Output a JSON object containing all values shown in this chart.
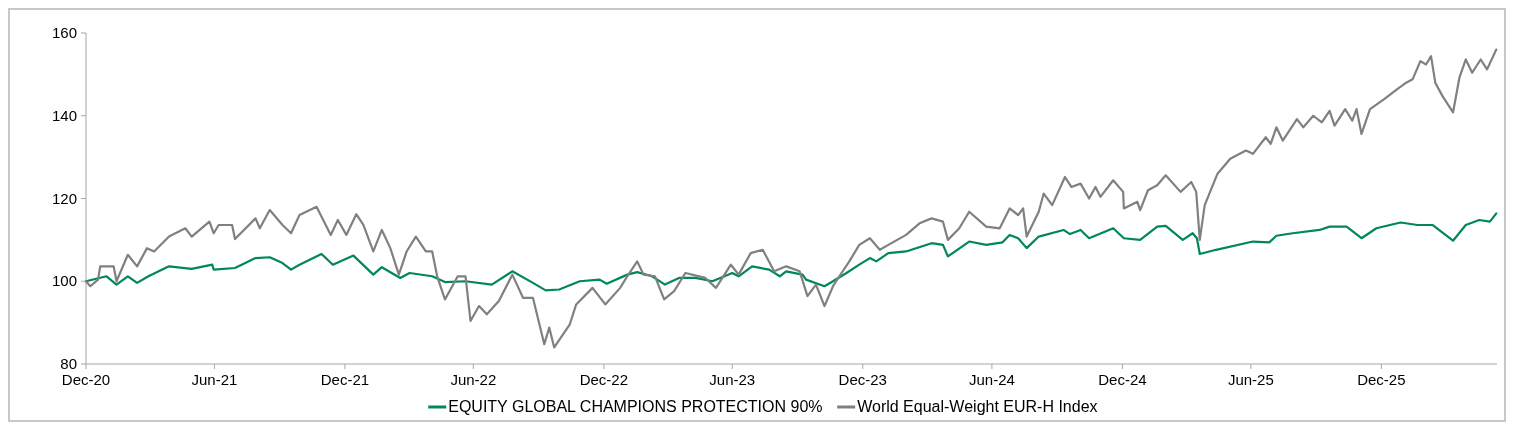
{
  "chart_data": {
    "type": "line",
    "legend": "bottom",
    "marker": "none",
    "line_style": "solid",
    "grid": false,
    "xlim": [
      "2020-12-31",
      "2026-06-12"
    ],
    "xticks": [
      {
        "value": "2020-12-31",
        "label": "Dec-20"
      },
      {
        "value": "2021-06-30",
        "label": "Jun-21"
      },
      {
        "value": "2021-12-31",
        "label": "Dec-21"
      },
      {
        "value": "2022-06-30",
        "label": "Jun-22"
      },
      {
        "value": "2022-12-31",
        "label": "Dec-22"
      },
      {
        "value": "2023-06-30",
        "label": "Jun-23"
      },
      {
        "value": "2023-12-31",
        "label": "Dec-23"
      },
      {
        "value": "2024-06-30",
        "label": "Jun-24"
      },
      {
        "value": "2024-12-31",
        "label": "Dec-24"
      },
      {
        "value": "2025-06-30",
        "label": "Jun-25"
      },
      {
        "value": "2025-12-31",
        "label": "Dec-25"
      }
    ],
    "ylim": [
      80,
      160
    ],
    "yticks": [
      80,
      100,
      120,
      140,
      160
    ],
    "series": [
      {
        "name": "EQUITY GLOBAL CHAMPIONS PROTECTION 90%",
        "color": "#00875a",
        "x": [
          "2020-12-31",
          "2021-01-29",
          "2021-02-12",
          "2021-02-28",
          "2021-03-13",
          "2021-03-29",
          "2021-04-27",
          "2021-05-29",
          "2021-06-27",
          "2021-06-29",
          "2021-07-29",
          "2021-08-27",
          "2021-09-16",
          "2021-10-04",
          "2021-10-16",
          "2021-10-28",
          "2021-11-28",
          "2021-12-14",
          "2022-01-12",
          "2022-02-09",
          "2022-02-21",
          "2022-03-19",
          "2022-04-01",
          "2022-05-03",
          "2022-05-21",
          "2022-06-19",
          "2022-07-26",
          "2022-08-24",
          "2022-09-22",
          "2022-10-10",
          "2022-10-29",
          "2022-11-27",
          "2022-12-25",
          "2023-01-04",
          "2023-02-02",
          "2023-02-16",
          "2023-03-09",
          "2023-03-27",
          "2023-04-16",
          "2023-05-09",
          "2023-06-02",
          "2023-06-30",
          "2023-07-09",
          "2023-07-28",
          "2023-08-21",
          "2023-09-05",
          "2023-09-14",
          "2023-10-07",
          "2023-10-12",
          "2023-11-07",
          "2023-11-19",
          "2023-12-08",
          "2023-12-26",
          "2024-01-10",
          "2024-01-19",
          "2024-02-05",
          "2024-03-01",
          "2024-04-06",
          "2024-04-22",
          "2024-04-29",
          "2024-05-29",
          "2024-06-22",
          "2024-07-15",
          "2024-07-25",
          "2024-08-06",
          "2024-08-18",
          "2024-09-04",
          "2024-10-09",
          "2024-10-18",
          "2024-11-02",
          "2024-11-14",
          "2024-12-18",
          "2025-01-02",
          "2025-01-25",
          "2025-02-18",
          "2025-03-02",
          "2025-03-26",
          "2025-04-09",
          "2025-04-15",
          "2025-04-19",
          "2025-05-12",
          "2025-07-03",
          "2025-07-26",
          "2025-08-05",
          "2025-08-28",
          "2025-10-05",
          "2025-10-19",
          "2025-11-12",
          "2025-12-03",
          "2025-12-24",
          "2026-01-27",
          "2026-02-20",
          "2026-03-13",
          "2026-04-11",
          "2026-04-29",
          "2026-05-18",
          "2026-06-02",
          "2026-06-11"
        ],
        "values": [
          100,
          101.2,
          99.2,
          101.2,
          99.6,
          101.2,
          103.6,
          103,
          104,
          102.8,
          103.2,
          105.6,
          105.8,
          104.4,
          102.8,
          104,
          106.6,
          104,
          106.2,
          101.6,
          103.4,
          100.8,
          102,
          101.2,
          99.8,
          100,
          99.2,
          102.4,
          99.6,
          97.8,
          98,
          100,
          100.4,
          99.4,
          101.6,
          102.2,
          101.2,
          99.2,
          100.8,
          100.8,
          100,
          102,
          101.2,
          103.6,
          102.8,
          101.2,
          102.4,
          101.6,
          100.4,
          98.8,
          100,
          102,
          104,
          105.6,
          104.8,
          106.8,
          107.2,
          109.2,
          108.8,
          106,
          109.6,
          108.8,
          109.4,
          111.2,
          110.4,
          108,
          110.8,
          112.4,
          111.4,
          112.4,
          110.4,
          112.8,
          110.4,
          110,
          113.2,
          113.4,
          110,
          111.6,
          110.4,
          106.6,
          107.6,
          109.6,
          109.4,
          111,
          111.6,
          112.4,
          113.2,
          113.2,
          110.4,
          112.8,
          114.2,
          113.6,
          113.6,
          109.8,
          113.6,
          114.8,
          114.4,
          116.4
        ]
      },
      {
        "name": "World Equal-Weight EUR-H Index",
        "color": "#808080",
        "x": [
          "2020-12-31",
          "2021-01-06",
          "2021-01-17",
          "2021-01-20",
          "2021-02-08",
          "2021-02-12",
          "2021-02-28",
          "2021-03-13",
          "2021-03-27",
          "2021-04-06",
          "2021-04-27",
          "2021-05-20",
          "2021-05-29",
          "2021-06-23",
          "2021-06-29",
          "2021-07-06",
          "2021-07-25",
          "2021-07-29",
          "2021-08-27",
          "2021-09-02",
          "2021-09-16",
          "2021-10-04",
          "2021-10-16",
          "2021-10-28",
          "2021-11-21",
          "2021-12-11",
          "2021-12-21",
          "2022-01-02",
          "2022-01-16",
          "2022-01-26",
          "2022-02-09",
          "2022-02-21",
          "2022-03-05",
          "2022-03-17",
          "2022-03-28",
          "2022-04-10",
          "2022-04-24",
          "2022-05-03",
          "2022-05-10",
          "2022-05-21",
          "2022-06-08",
          "2022-06-19",
          "2022-06-26",
          "2022-07-08",
          "2022-07-19",
          "2022-08-05",
          "2022-08-24",
          "2022-09-08",
          "2022-09-22",
          "2022-10-08",
          "2022-10-15",
          "2022-10-22",
          "2022-11-13",
          "2022-11-22",
          "2022-12-15",
          "2023-01-02",
          "2023-01-23",
          "2023-02-02",
          "2023-02-16",
          "2023-02-25",
          "2023-03-13",
          "2023-03-26",
          "2023-04-09",
          "2023-04-25",
          "2023-05-23",
          "2023-06-07",
          "2023-06-28",
          "2023-07-09",
          "2023-07-26",
          "2023-08-12",
          "2023-08-28",
          "2023-09-14",
          "2023-10-03",
          "2023-10-14",
          "2023-10-26",
          "2023-11-07",
          "2023-11-19",
          "2023-12-01",
          "2023-12-12",
          "2023-12-26",
          "2024-01-10",
          "2024-01-24",
          "2024-02-05",
          "2024-03-01",
          "2024-03-20",
          "2024-04-06",
          "2024-04-22",
          "2024-04-29",
          "2024-05-15",
          "2024-05-29",
          "2024-06-22",
          "2024-07-11",
          "2024-07-25",
          "2024-08-06",
          "2024-08-13",
          "2024-08-18",
          "2024-09-04",
          "2024-09-11",
          "2024-09-23",
          "2024-10-11",
          "2024-10-20",
          "2024-11-02",
          "2024-11-14",
          "2024-11-23",
          "2024-11-30",
          "2024-12-18",
          "2025-01-01",
          "2025-01-02",
          "2025-01-21",
          "2025-01-25",
          "2025-02-05",
          "2025-02-18",
          "2025-03-02",
          "2025-03-23",
          "2025-04-07",
          "2025-04-14",
          "2025-04-19",
          "2025-04-26",
          "2025-05-14",
          "2025-06-01",
          "2025-06-23",
          "2025-07-03",
          "2025-07-21",
          "2025-07-28",
          "2025-08-05",
          "2025-08-14",
          "2025-09-03",
          "2025-09-12",
          "2025-09-26",
          "2025-10-08",
          "2025-10-19",
          "2025-10-26",
          "2025-11-10",
          "2025-11-20",
          "2025-11-26",
          "2025-12-03",
          "2025-12-15",
          "2026-01-04",
          "2026-01-22",
          "2026-02-04",
          "2026-02-13",
          "2026-02-24",
          "2026-03-04",
          "2026-03-11",
          "2026-03-17",
          "2026-03-27",
          "2026-04-11",
          "2026-04-20",
          "2026-04-29",
          "2026-05-08",
          "2026-05-20",
          "2026-05-29",
          "2026-06-11"
        ],
        "values": [
          100,
          98.8,
          100.4,
          103.6,
          103.6,
          100,
          106.4,
          103.6,
          108,
          107.2,
          110.8,
          112.8,
          110.8,
          114.4,
          111.6,
          113.6,
          113.6,
          110.2,
          115.2,
          112.8,
          117.2,
          113.6,
          111.6,
          116,
          118,
          111.2,
          114.8,
          111.2,
          116.2,
          113.6,
          107.2,
          112.4,
          108,
          101.6,
          107.2,
          110.8,
          107.2,
          107.2,
          101.2,
          95.6,
          101.2,
          101.2,
          90.4,
          94,
          92,
          95.2,
          101.6,
          96,
          96,
          84.8,
          88.8,
          84,
          89.6,
          94.4,
          98.4,
          94.4,
          98.4,
          101.2,
          104.8,
          101.6,
          101.2,
          95.6,
          97.6,
          102,
          100.8,
          98.4,
          104,
          101.6,
          106.8,
          107.6,
          102.4,
          103.6,
          102.4,
          96.4,
          99.2,
          94,
          98.8,
          102,
          104.8,
          108.8,
          110.4,
          107.6,
          108.8,
          111.2,
          114,
          115.2,
          114.4,
          110,
          112.8,
          116.8,
          113.2,
          112.8,
          117.6,
          116,
          117.6,
          110.8,
          116.8,
          121.2,
          118.4,
          125.2,
          122.8,
          123.6,
          120,
          122.8,
          120.4,
          124.4,
          121.6,
          117.6,
          119.2,
          117.2,
          122,
          123.2,
          125.6,
          121.6,
          124,
          121.6,
          110,
          118.4,
          126,
          129.6,
          131.6,
          130.8,
          134.8,
          133.2,
          137.2,
          134,
          139.2,
          137.2,
          140,
          138.4,
          141.2,
          137.6,
          141.6,
          138.8,
          141.6,
          135.6,
          141.6,
          144,
          146.4,
          148,
          148.8,
          153.2,
          152.4,
          154.4,
          148,
          144.8,
          140.8,
          149.2,
          153.6,
          150.4,
          153.6,
          151.2,
          156
        ]
      }
    ]
  }
}
